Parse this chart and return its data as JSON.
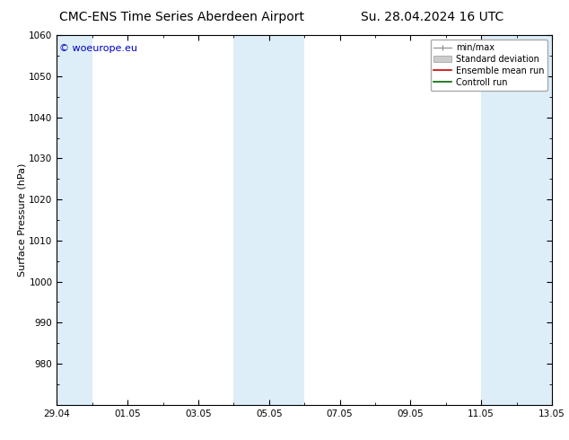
{
  "title_left": "CMC-ENS Time Series Aberdeen Airport",
  "title_right": "Su. 28.04.2024 16 UTC",
  "ylabel": "Surface Pressure (hPa)",
  "ylim": [
    970,
    1060
  ],
  "yticks": [
    980,
    990,
    1000,
    1010,
    1020,
    1030,
    1040,
    1050,
    1060
  ],
  "xtick_labels": [
    "29.04",
    "01.05",
    "03.05",
    "05.05",
    "07.05",
    "09.05",
    "11.05",
    "13.05"
  ],
  "xtick_days": [
    0,
    2,
    4,
    6,
    8,
    10,
    12,
    14
  ],
  "total_days": 14,
  "watermark": "© woeurope.eu",
  "watermark_color": "#0000cc",
  "legend_entries": [
    "min/max",
    "Standard deviation",
    "Ensemble mean run",
    "Controll run"
  ],
  "shaded_intervals": [
    [
      0,
      1
    ],
    [
      5,
      6
    ],
    [
      6,
      7
    ],
    [
      12,
      13
    ],
    [
      13,
      14
    ]
  ],
  "shaded_band_color": "#ddeef8",
  "background_color": "#ffffff",
  "title_fontsize": 10,
  "tick_fontsize": 7.5,
  "ylabel_fontsize": 8,
  "legend_fontsize": 7
}
